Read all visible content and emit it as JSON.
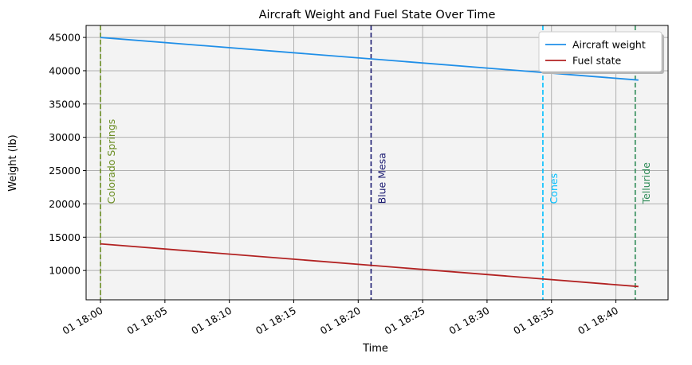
{
  "chart_data": {
    "type": "line",
    "title": "Aircraft Weight and Fuel State Over Time",
    "xlabel": "Time",
    "ylabel": "Weight (lb)",
    "x_type": "datetime",
    "xlim": [
      "2024-01-01T17:58:53",
      "2024-01-01T18:44:03"
    ],
    "ylim": [
      5600,
      46800
    ],
    "xticks": [
      {
        "t": "2024-01-01T18:00:00",
        "label": "01 18:00"
      },
      {
        "t": "2024-01-01T18:05:00",
        "label": "01 18:05"
      },
      {
        "t": "2024-01-01T18:10:00",
        "label": "01 18:10"
      },
      {
        "t": "2024-01-01T18:15:00",
        "label": "01 18:15"
      },
      {
        "t": "2024-01-01T18:20:00",
        "label": "01 18:20"
      },
      {
        "t": "2024-01-01T18:25:00",
        "label": "01 18:25"
      },
      {
        "t": "2024-01-01T18:30:00",
        "label": "01 18:30"
      },
      {
        "t": "2024-01-01T18:35:00",
        "label": "01 18:35"
      },
      {
        "t": "2024-01-01T18:40:00",
        "label": "01 18:40"
      }
    ],
    "yticks": [
      10000,
      15000,
      20000,
      25000,
      30000,
      35000,
      40000,
      45000
    ],
    "grid": true,
    "background": "#f3f3f3",
    "legend_position": "upper-right",
    "series": [
      {
        "name": "Aircraft weight",
        "color": "#1f8fe8",
        "points": [
          {
            "t": "2024-01-01T18:00:00",
            "y": 45000
          },
          {
            "t": "2024-01-01T18:41:45",
            "y": 38600
          }
        ]
      },
      {
        "name": "Fuel state",
        "color": "#b22222",
        "points": [
          {
            "t": "2024-01-01T18:00:00",
            "y": 14000
          },
          {
            "t": "2024-01-01T18:41:45",
            "y": 7600
          }
        ]
      }
    ],
    "annotations": [
      {
        "label": "Colorado Springs",
        "t": "2024-01-01T18:00:00",
        "color": "#6b8e23",
        "label_y": 20000
      },
      {
        "label": "Blue Mesa",
        "t": "2024-01-01T18:21:00",
        "color": "#191970",
        "label_y": 20000
      },
      {
        "label": "Cones",
        "t": "2024-01-01T18:34:20",
        "color": "#00bfff",
        "label_y": 20000
      },
      {
        "label": "Telluride",
        "t": "2024-01-01T18:41:30",
        "color": "#2e8b57",
        "label_y": 20000
      }
    ]
  }
}
